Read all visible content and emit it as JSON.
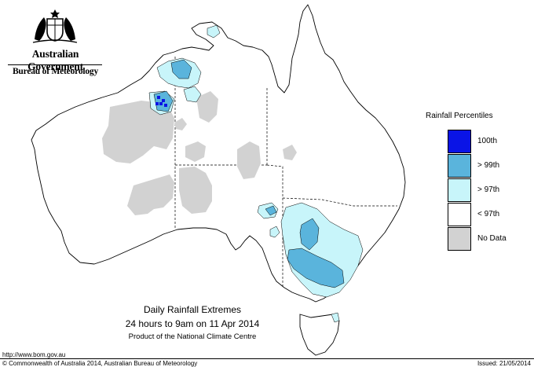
{
  "header": {
    "government": "Australian Government",
    "bureau": "Bureau of Meteorology"
  },
  "legend": {
    "title": "Rainfall Percentiles",
    "items": [
      {
        "label": "100th",
        "color": "#0a14e6"
      },
      {
        "label": "> 99th",
        "color": "#5ab4dc"
      },
      {
        "label": "> 97th",
        "color": "#c8f5fa"
      },
      {
        "label": "< 97th",
        "color": "#ffffff"
      },
      {
        "label": "No Data",
        "color": "#d2d2d2"
      }
    ]
  },
  "caption": {
    "title": "Daily Rainfall Extremes",
    "period": "24 hours to 9am on 11 Apr 2014",
    "product": "Product of the National Climate Centre"
  },
  "footer": {
    "url": "http://www.bom.gov.au",
    "copyright": "© Commonwealth of Australia 2014, Australian Bureau of Meteorology",
    "issued": "Issued: 21/05/2014"
  }
}
